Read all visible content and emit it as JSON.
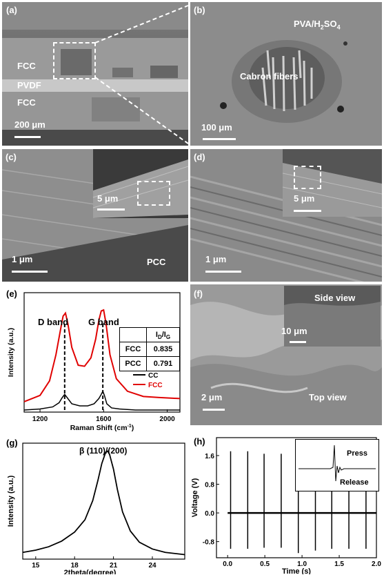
{
  "panels": {
    "a": {
      "label": "(a)",
      "t_fcc_top": "FCC",
      "t_pvdf": "PVDF",
      "t_fcc_bot": "FCC",
      "scale": "200 μm"
    },
    "b": {
      "label": "(b)",
      "electrolyte": "PVA/H",
      "electrolyte_sub1": "2",
      "electrolyte_mid": "SO",
      "electrolyte_sub2": "4",
      "fibers": "Cabron fibers",
      "scale": "100 μm"
    },
    "c": {
      "label": "(c)",
      "inset_scale": "5 μm",
      "scale": "1 μm",
      "tag": "PCC"
    },
    "d": {
      "label": "(d)",
      "inset_scale": "5 μm",
      "scale": "1 μm"
    },
    "f": {
      "label": "(f)",
      "side": "Side view",
      "inset_scale": "10 μm",
      "scale": "2 μm",
      "top": "Top view"
    },
    "e": {
      "label": "(e)"
    },
    "g": {
      "label": "(g)"
    },
    "h": {
      "label": "(h)",
      "press": "Press",
      "release": "Release"
    }
  },
  "chart_data": [
    {
      "panel": "e",
      "type": "line",
      "xlabel": "Raman Shift (cm",
      "xlabel_sup": "-1",
      "xlabel_end": ")",
      "ylabel": "Intensity (a.u.)",
      "xlim": [
        1100,
        2080
      ],
      "xticks": [
        1200,
        1600,
        2000
      ],
      "xtick_labels": [
        "1200",
        "1600",
        "2000"
      ],
      "peak_labels": [
        "D band",
        "G band"
      ],
      "peak_positions": [
        1355,
        1595
      ],
      "table": {
        "header_main": "I",
        "header_sub1": "D",
        "header_slash": "/I",
        "header_sub2": "G",
        "rows": [
          {
            "name": "FCC",
            "value": "0.835"
          },
          {
            "name": "PCC",
            "value": "0.791"
          }
        ]
      },
      "series": [
        {
          "name": "CC",
          "color": "#000000",
          "x": [
            1100,
            1200,
            1280,
            1320,
            1340,
            1355,
            1370,
            1400,
            1450,
            1500,
            1540,
            1570,
            1585,
            1595,
            1605,
            1620,
            1650,
            1700,
            1800,
            1900,
            2000,
            2080
          ],
          "y": [
            0.02,
            0.03,
            0.05,
            0.09,
            0.14,
            0.17,
            0.14,
            0.08,
            0.06,
            0.06,
            0.08,
            0.13,
            0.17,
            0.2,
            0.16,
            0.08,
            0.04,
            0.03,
            0.02,
            0.02,
            0.02,
            0.02
          ]
        },
        {
          "name": "FCC",
          "color": "#e00000",
          "x": [
            1100,
            1200,
            1260,
            1300,
            1330,
            1345,
            1360,
            1375,
            1400,
            1440,
            1480,
            1520,
            1550,
            1570,
            1585,
            1600,
            1615,
            1640,
            1680,
            1750,
            1850,
            1950,
            2080
          ],
          "y": [
            0.1,
            0.16,
            0.3,
            0.55,
            0.8,
            0.92,
            0.95,
            0.85,
            0.62,
            0.45,
            0.44,
            0.52,
            0.7,
            0.88,
            0.97,
            0.98,
            0.85,
            0.55,
            0.32,
            0.2,
            0.15,
            0.14,
            0.13
          ]
        }
      ]
    },
    {
      "panel": "g",
      "type": "line",
      "title": "β (110)/(200)",
      "xlabel": "2theta(degree)",
      "ylabel": "Intensity (a.u.)",
      "xlim": [
        14,
        26.5
      ],
      "xticks": [
        15,
        18,
        21,
        24
      ],
      "xtick_labels": [
        "15",
        "18",
        "21",
        "24"
      ],
      "series": [
        {
          "name": "",
          "color": "#000000",
          "x": [
            14,
            15,
            16,
            17,
            18,
            18.8,
            19.4,
            19.8,
            20.1,
            20.4,
            20.55,
            20.7,
            21.0,
            21.3,
            21.7,
            22.3,
            23,
            24,
            25,
            26.5
          ],
          "y": [
            0.06,
            0.08,
            0.11,
            0.16,
            0.24,
            0.35,
            0.52,
            0.7,
            0.85,
            0.95,
            0.96,
            0.93,
            0.8,
            0.62,
            0.42,
            0.25,
            0.15,
            0.09,
            0.06,
            0.04
          ]
        }
      ]
    },
    {
      "panel": "h",
      "type": "line",
      "xlabel": "Time (s)",
      "ylabel": "Voltage (V)",
      "xlim": [
        -0.15,
        2.0
      ],
      "ylim": [
        -1.25,
        2.1
      ],
      "xticks": [
        0.0,
        0.5,
        1.0,
        1.5,
        2.0
      ],
      "xtick_labels": [
        "0.0",
        "0.5",
        "1.0",
        "1.5",
        "2.0"
      ],
      "yticks": [
        -0.8,
        0.0,
        0.8,
        1.6
      ],
      "ytick_labels": [
        "-0.8",
        "0.0",
        "0.8",
        "1.6"
      ],
      "pulse_times": [
        0.04,
        0.27,
        0.49,
        0.72,
        0.95,
        1.18,
        1.4,
        1.63,
        1.86
      ],
      "pulse_max": [
        1.72,
        1.72,
        1.65,
        1.65,
        1.82,
        1.62,
        1.62,
        1.62,
        1.6
      ],
      "pulse_min": [
        -1.0,
        -1.0,
        -0.97,
        -0.97,
        -1.12,
        -1.05,
        -1.0,
        -1.0,
        -1.0
      ]
    }
  ]
}
